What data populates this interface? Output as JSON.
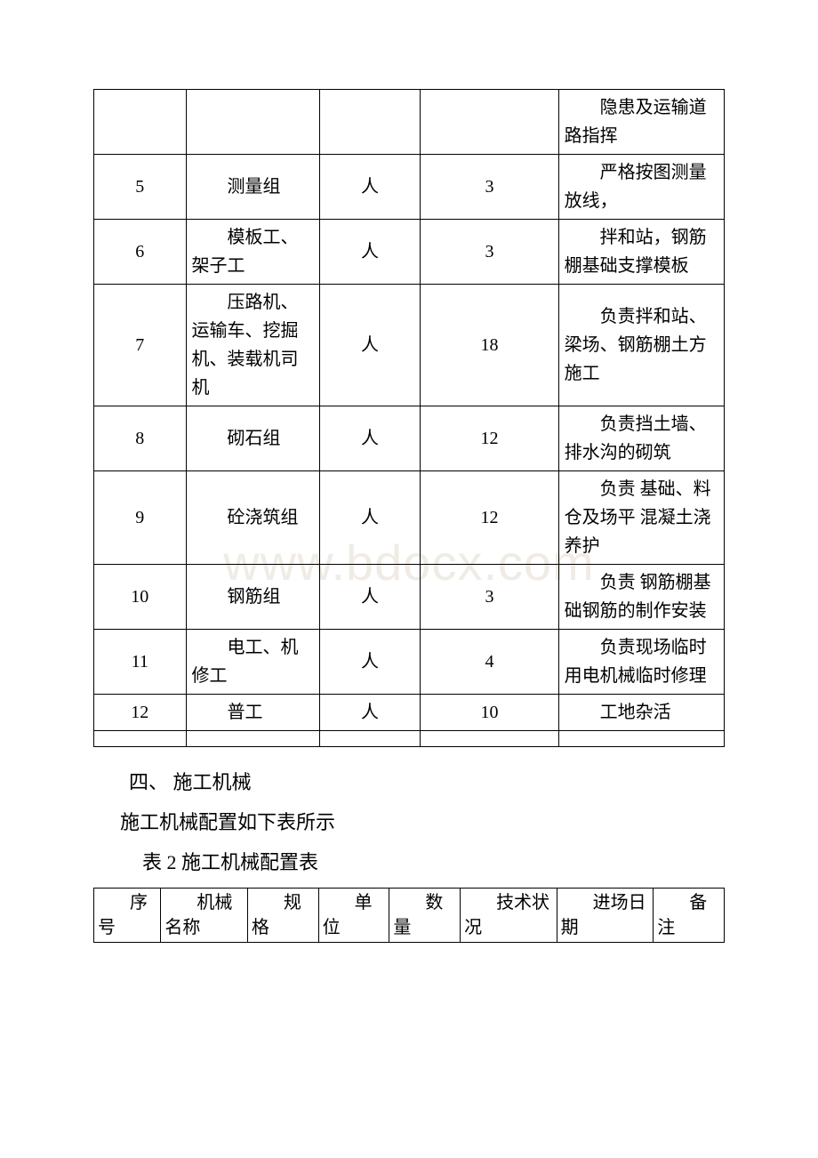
{
  "watermark": "www.bdocx.com",
  "table1": {
    "rows": [
      {
        "no": "",
        "name": "",
        "unit": "",
        "qty": "",
        "note": "隐患及运输道路指挥"
      },
      {
        "no": "5",
        "name": "测量组",
        "unit": "人",
        "qty": "3",
        "note": "严格按图测量放线，"
      },
      {
        "no": "6",
        "name": "模板工、架子工",
        "unit": "人",
        "qty": "3",
        "note": "拌和站，钢筋棚基础支撑模板"
      },
      {
        "no": "7",
        "name": "压路机、运输车、挖掘机、装载机司机",
        "unit": "人",
        "qty": "18",
        "note": "负责拌和站、梁场、钢筋棚土方施工"
      },
      {
        "no": "8",
        "name": "砌石组",
        "unit": "人",
        "qty": "12",
        "note": "负责挡土墙、排水沟的砌筑"
      },
      {
        "no": "9",
        "name": "砼浇筑组",
        "unit": "人",
        "qty": "12",
        "note": "负责 基础、料仓及场平 混凝土浇养护"
      },
      {
        "no": "10",
        "name": "钢筋组",
        "unit": "人",
        "qty": "3",
        "note": "负责 钢筋棚基础钢筋的制作安装"
      },
      {
        "no": "11",
        "name": "电工、机修工",
        "unit": "人",
        "qty": "4",
        "note": "负责现场临时用电机械临时修理"
      },
      {
        "no": "12",
        "name": "普工",
        "unit": "人",
        "qty": "10",
        "note": "工地杂活"
      }
    ]
  },
  "section": {
    "heading": "四、 施工机械",
    "para": "施工机械配置如下表所示",
    "caption": "表 2 施工机械配置表"
  },
  "table2": {
    "headers": {
      "c1": "序号",
      "c2": "机械名称",
      "c3": "规格",
      "c4": "单位",
      "c5": "数量",
      "c6": "技术状况",
      "c7": "进场日期",
      "c8": "备注"
    }
  }
}
